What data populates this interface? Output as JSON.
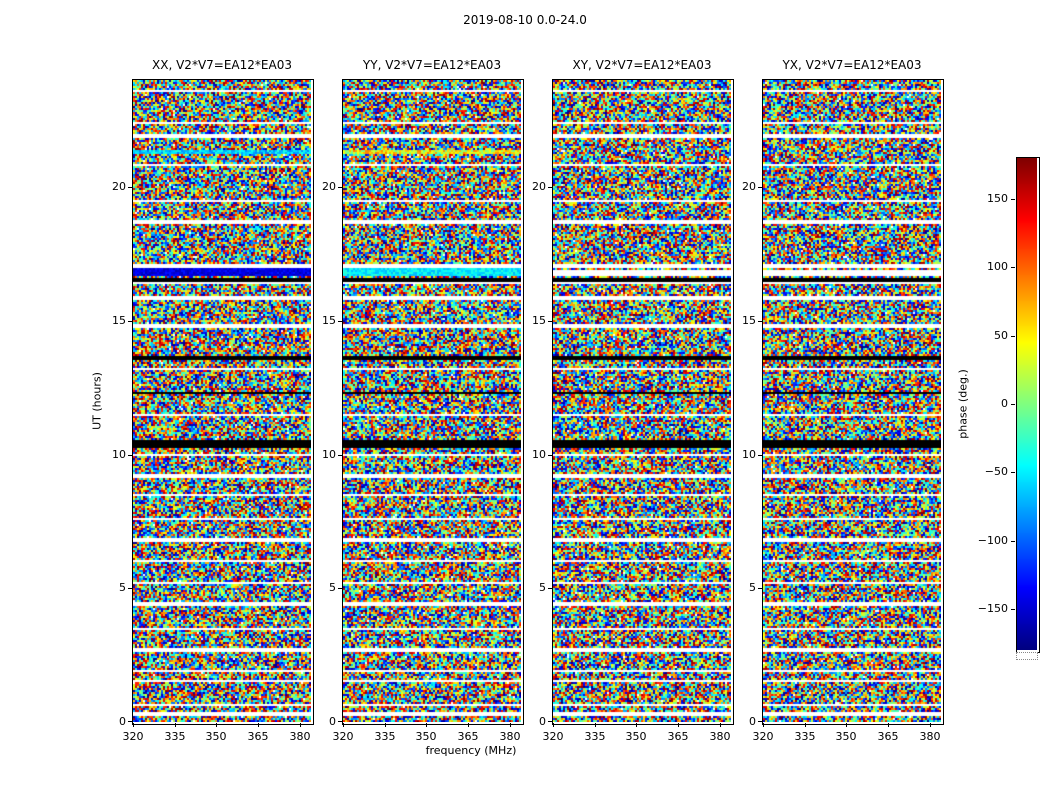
{
  "chart_data": {
    "type": "heatmap",
    "title": "2019-08-10 0.0-24.0",
    "xlabel": "frequency (MHz)",
    "ylabel": "UT (hours)",
    "x_range": [
      320,
      384
    ],
    "y_range": [
      0,
      24
    ],
    "x_ticks": [
      320,
      335,
      350,
      365,
      380
    ],
    "y_ticks": [
      0,
      5,
      10,
      15,
      20
    ],
    "baseline_label": "V2*V7=EA12*EA03",
    "panels": [
      {
        "polarization": "XX",
        "title": "XX, V2*V7=EA12*EA03"
      },
      {
        "polarization": "YY",
        "title": "YY, V2*V7=EA12*EA03"
      },
      {
        "polarization": "XY",
        "title": "XY, V2*V7=EA12*EA03"
      },
      {
        "polarization": "YX",
        "title": "YX, V2*V7=EA12*EA03"
      }
    ],
    "colorbar": {
      "label": "phase (deg.)",
      "ticks": [
        150,
        100,
        50,
        0,
        -50,
        -100,
        -150
      ],
      "vmin": -180,
      "vmax": 180,
      "colormap": "jet"
    },
    "data": {
      "description": "Uniformly random visibility phase noise between -180 and +180 degrees across 320-384 MHz and 0-24 UT hours; horizontal white rows are flagged/missing time ranges; black rows are flagged zero rows.",
      "flagged_white_rows_ut": [
        23.6,
        22.4,
        21.9,
        20.8,
        19.5,
        18.7,
        17.05,
        16.4,
        15.85,
        14.8,
        13.2,
        11.5,
        10.0,
        9.2,
        8.5,
        7.6,
        6.8,
        6.0,
        5.2,
        4.4,
        3.5,
        2.7,
        1.9,
        1.55,
        0.64,
        0.3
      ],
      "flagged_black_rows_ut": [
        16.55,
        13.6,
        12.3,
        10.45,
        10.3
      ],
      "coherent_features": [
        {
          "panel": 0,
          "ut": 21.32,
          "half_width_ut": 0.07,
          "phase_deg": -60,
          "jitter_deg": 30,
          "note": "cyan coherent stripe in XX"
        },
        {
          "panel": 1,
          "ut": 21.32,
          "half_width_ut": 0.07,
          "phase_deg": 40,
          "jitter_deg": 50,
          "note": "yellow-green coherent stripe in YY"
        },
        {
          "panel": 0,
          "ut": 16.8,
          "half_width_ut": 0.16,
          "phase_deg": -145,
          "jitter_deg": 18,
          "note": "dark blue coherent stripe in XX"
        },
        {
          "panel": 1,
          "ut": 16.8,
          "half_width_ut": 0.16,
          "phase_deg": -50,
          "jitter_deg": 22,
          "note": "cyan-green coherent stripe in YY"
        },
        {
          "panel": 2,
          "ut": 16.8,
          "half_width_ut": 0.09,
          "white": true,
          "note": "flagged gap in XY"
        },
        {
          "panel": 3,
          "ut": 16.8,
          "half_width_ut": 0.09,
          "white": true,
          "note": "flagged gap in YX"
        }
      ]
    }
  }
}
